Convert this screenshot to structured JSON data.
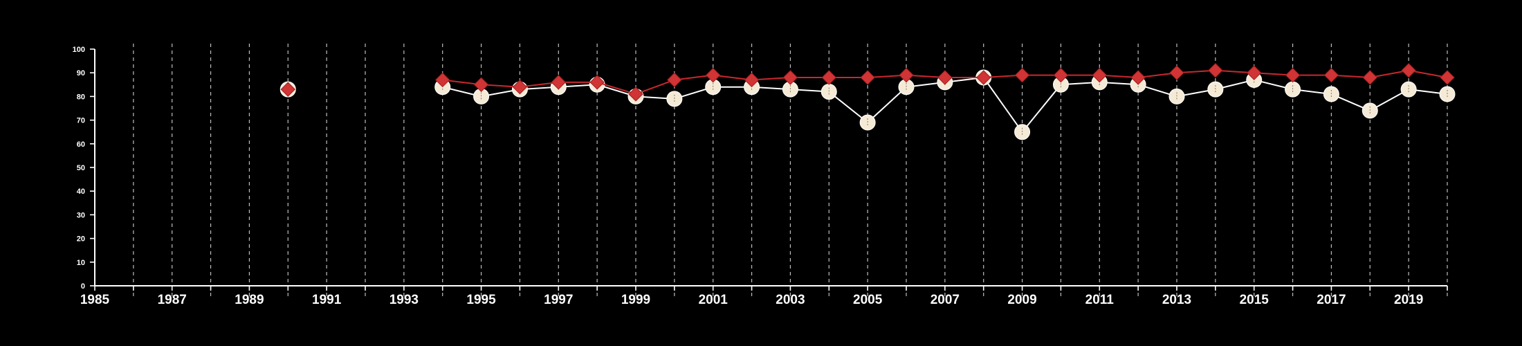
{
  "chart_data": {
    "type": "line",
    "x_axis": {
      "min": 1985,
      "max": 2020,
      "tick_labels": [
        "1985",
        "1987",
        "1989",
        "1991",
        "1993",
        "1995",
        "1997",
        "1999",
        "2001",
        "2003",
        "2005",
        "2007",
        "2009",
        "2011",
        "2013",
        "2015",
        "2017",
        "2019"
      ],
      "grid": "vertical-dashed"
    },
    "y_axis": {
      "min": 0,
      "max": 100,
      "tick_labels": [
        "0",
        "10",
        "20",
        "30",
        "40",
        "50",
        "60",
        "70",
        "80",
        "90",
        "100"
      ]
    },
    "series": [
      {
        "marker": "circle",
        "color": "#f5ead6",
        "line_color": "#ffffff",
        "points": [
          {
            "x": 1990,
            "y": 83
          },
          {
            "x": 1994,
            "y": 84
          },
          {
            "x": 1995,
            "y": 80
          },
          {
            "x": 1996,
            "y": 83
          },
          {
            "x": 1997,
            "y": 84
          },
          {
            "x": 1998,
            "y": 85
          },
          {
            "x": 1999,
            "y": 80
          },
          {
            "x": 2000,
            "y": 79
          },
          {
            "x": 2001,
            "y": 84
          },
          {
            "x": 2002,
            "y": 84
          },
          {
            "x": 2003,
            "y": 83
          },
          {
            "x": 2004,
            "y": 82
          },
          {
            "x": 2005,
            "y": 69
          },
          {
            "x": 2006,
            "y": 84
          },
          {
            "x": 2007,
            "y": 86
          },
          {
            "x": 2008,
            "y": 88
          },
          {
            "x": 2009,
            "y": 65
          },
          {
            "x": 2010,
            "y": 85
          },
          {
            "x": 2011,
            "y": 86
          },
          {
            "x": 2012,
            "y": 85
          },
          {
            "x": 2013,
            "y": 80
          },
          {
            "x": 2014,
            "y": 83
          },
          {
            "x": 2015,
            "y": 87
          },
          {
            "x": 2016,
            "y": 83
          },
          {
            "x": 2017,
            "y": 81
          },
          {
            "x": 2018,
            "y": 74
          },
          {
            "x": 2019,
            "y": 83
          },
          {
            "x": 2020,
            "y": 81
          }
        ]
      },
      {
        "marker": "diamond",
        "color": "#d03434",
        "line_color": "#c8282e",
        "points": [
          {
            "x": 1990,
            "y": 83
          },
          {
            "x": 1994,
            "y": 87
          },
          {
            "x": 1995,
            "y": 85
          },
          {
            "x": 1996,
            "y": 84
          },
          {
            "x": 1997,
            "y": 86
          },
          {
            "x": 1998,
            "y": 86
          },
          {
            "x": 1999,
            "y": 81
          },
          {
            "x": 2000,
            "y": 87
          },
          {
            "x": 2001,
            "y": 89
          },
          {
            "x": 2002,
            "y": 87
          },
          {
            "x": 2003,
            "y": 88
          },
          {
            "x": 2004,
            "y": 88
          },
          {
            "x": 2005,
            "y": 88
          },
          {
            "x": 2006,
            "y": 89
          },
          {
            "x": 2007,
            "y": 88
          },
          {
            "x": 2008,
            "y": 88
          },
          {
            "x": 2009,
            "y": 89
          },
          {
            "x": 2010,
            "y": 89
          },
          {
            "x": 2011,
            "y": 89
          },
          {
            "x": 2012,
            "y": 88
          },
          {
            "x": 2013,
            "y": 90
          },
          {
            "x": 2014,
            "y": 91
          },
          {
            "x": 2015,
            "y": 90
          },
          {
            "x": 2016,
            "y": 89
          },
          {
            "x": 2017,
            "y": 89
          },
          {
            "x": 2018,
            "y": 88
          },
          {
            "x": 2019,
            "y": 91
          },
          {
            "x": 2020,
            "y": 88
          }
        ]
      }
    ]
  }
}
